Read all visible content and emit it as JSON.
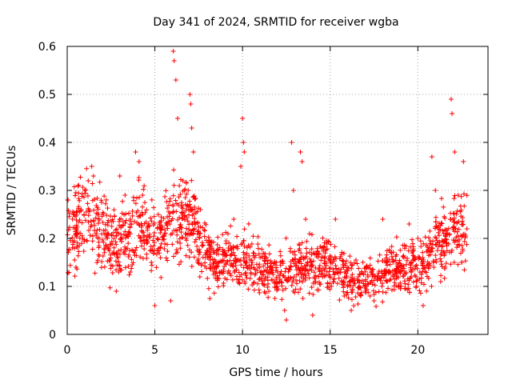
{
  "chart_data": {
    "type": "scatter",
    "title": "Day 341 of 2024, SRMTID for receiver wgba",
    "xlabel": "GPS time / hours",
    "ylabel": "SRMTID / TECUs",
    "xlim": [
      0,
      24
    ],
    "ylim": [
      0,
      0.6
    ],
    "x_ticks": [
      0,
      5,
      10,
      15,
      20
    ],
    "x_tick_labels": [
      "0",
      "5",
      "10",
      "15",
      "20"
    ],
    "y_ticks": [
      0,
      0.1,
      0.2,
      0.3,
      0.4,
      0.5,
      0.6
    ],
    "y_tick_labels": [
      "0",
      "0.1",
      "0.2",
      "0.3",
      "0.4",
      "0.5",
      "0.6"
    ],
    "grid": true,
    "marker": "+",
    "color": "#ff0000",
    "series": [
      {
        "name": "SRMTID",
        "profile_hours": [
          0,
          1,
          2,
          3,
          4,
          5,
          6,
          7,
          8,
          9,
          10,
          11,
          12,
          13,
          14,
          15,
          16,
          17,
          18,
          19,
          20,
          21,
          22,
          22.8
        ],
        "profile_median": [
          0.19,
          0.25,
          0.21,
          0.19,
          0.23,
          0.19,
          0.24,
          0.24,
          0.16,
          0.16,
          0.16,
          0.14,
          0.12,
          0.14,
          0.15,
          0.14,
          0.12,
          0.11,
          0.13,
          0.14,
          0.14,
          0.18,
          0.21,
          0.23
        ],
        "points": [
          [
            0.02,
            0.28
          ],
          [
            0.05,
            0.28
          ],
          [
            0.3,
            0.24
          ],
          [
            0.5,
            0.14
          ],
          [
            0.8,
            0.26
          ],
          [
            1.0,
            0.3
          ],
          [
            1.2,
            0.32
          ],
          [
            1.4,
            0.35
          ],
          [
            1.5,
            0.33
          ],
          [
            1.8,
            0.25
          ],
          [
            2.2,
            0.21
          ],
          [
            2.6,
            0.17
          ],
          [
            2.8,
            0.09
          ],
          [
            3.0,
            0.33
          ],
          [
            3.3,
            0.29
          ],
          [
            3.6,
            0.24
          ],
          [
            3.9,
            0.38
          ],
          [
            4.1,
            0.36
          ],
          [
            4.3,
            0.29
          ],
          [
            4.8,
            0.15
          ],
          [
            5.0,
            0.06
          ],
          [
            5.3,
            0.18
          ],
          [
            5.7,
            0.23
          ],
          [
            5.9,
            0.07
          ],
          [
            6.05,
            0.59
          ],
          [
            6.1,
            0.57
          ],
          [
            6.2,
            0.53
          ],
          [
            6.3,
            0.45
          ],
          [
            6.6,
            0.32
          ],
          [
            6.9,
            0.3
          ],
          [
            7.0,
            0.5
          ],
          [
            7.05,
            0.48
          ],
          [
            7.1,
            0.43
          ],
          [
            7.2,
            0.38
          ],
          [
            7.6,
            0.26
          ],
          [
            8.0,
            0.16
          ],
          [
            8.5,
            0.13
          ],
          [
            9.0,
            0.17
          ],
          [
            9.5,
            0.24
          ],
          [
            9.9,
            0.35
          ],
          [
            10.0,
            0.45
          ],
          [
            10.05,
            0.4
          ],
          [
            10.1,
            0.38
          ],
          [
            10.5,
            0.14
          ],
          [
            11.0,
            0.16
          ],
          [
            11.5,
            0.09
          ],
          [
            12.0,
            0.13
          ],
          [
            12.4,
            0.05
          ],
          [
            12.5,
            0.03
          ],
          [
            12.8,
            0.4
          ],
          [
            12.9,
            0.3
          ],
          [
            13.3,
            0.38
          ],
          [
            13.4,
            0.36
          ],
          [
            13.6,
            0.24
          ],
          [
            14.0,
            0.04
          ],
          [
            14.5,
            0.18
          ],
          [
            15.0,
            0.12
          ],
          [
            15.3,
            0.24
          ],
          [
            15.8,
            0.08
          ],
          [
            16.2,
            0.05
          ],
          [
            16.6,
            0.12
          ],
          [
            17.0,
            0.1
          ],
          [
            17.5,
            0.07
          ],
          [
            18.0,
            0.24
          ],
          [
            18.5,
            0.17
          ],
          [
            19.0,
            0.13
          ],
          [
            19.5,
            0.23
          ],
          [
            20.0,
            0.2
          ],
          [
            20.3,
            0.06
          ],
          [
            20.6,
            0.14
          ],
          [
            20.8,
            0.37
          ],
          [
            21.0,
            0.3
          ],
          [
            21.3,
            0.11
          ],
          [
            21.6,
            0.19
          ],
          [
            21.9,
            0.49
          ],
          [
            21.95,
            0.46
          ],
          [
            22.1,
            0.38
          ],
          [
            22.3,
            0.29
          ],
          [
            22.6,
            0.36
          ],
          [
            22.8,
            0.22
          ]
        ]
      }
    ]
  }
}
